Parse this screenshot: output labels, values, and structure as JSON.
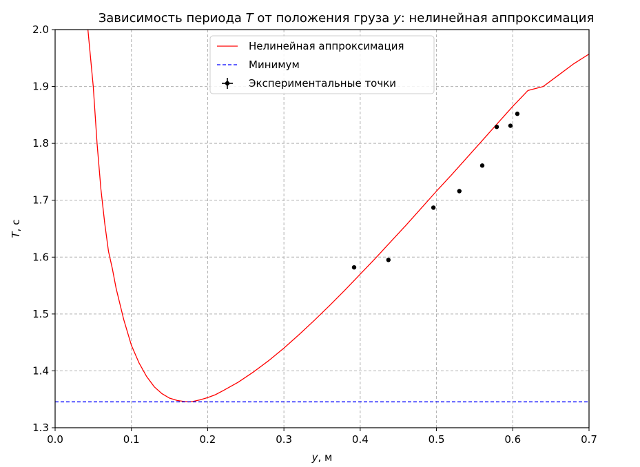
{
  "chart_data": {
    "type": "line",
    "title_parts": [
      {
        "text": "Зависимость периода ",
        "italic": false
      },
      {
        "text": "T",
        "italic": true
      },
      {
        "text": " от положения груза ",
        "italic": false
      },
      {
        "text": "y",
        "italic": true
      },
      {
        "text": ": нелинейная аппроксимация",
        "italic": false
      }
    ],
    "xlabel_parts": [
      {
        "text": "y",
        "italic": true
      },
      {
        "text": ", м",
        "italic": false
      }
    ],
    "ylabel_parts": [
      {
        "text": "T",
        "italic": true
      },
      {
        "text": ", с",
        "italic": false
      }
    ],
    "xlim": [
      0.0,
      0.7
    ],
    "ylim": [
      1.3,
      2.0
    ],
    "xticks": [
      0.0,
      0.1,
      0.2,
      0.3,
      0.4,
      0.5,
      0.6,
      0.7
    ],
    "xtick_labels": [
      "0.0",
      "0.1",
      "0.2",
      "0.3",
      "0.4",
      "0.5",
      "0.6",
      "0.7"
    ],
    "yticks": [
      1.3,
      1.4,
      1.5,
      1.6,
      1.7,
      1.8,
      1.9,
      2.0
    ],
    "ytick_labels": [
      "1.3",
      "1.4",
      "1.5",
      "1.6",
      "1.7",
      "1.8",
      "1.9",
      "2.0"
    ],
    "grid": true,
    "legend_position": "top-center",
    "series": [
      {
        "name": "Нелинейная аппроксимация",
        "kind": "line",
        "color": "#ff0000",
        "x": [
          0.043,
          0.05,
          0.055,
          0.06,
          0.065,
          0.07,
          0.075,
          0.08,
          0.09,
          0.1,
          0.11,
          0.12,
          0.13,
          0.14,
          0.15,
          0.16,
          0.17,
          0.175,
          0.18,
          0.19,
          0.2,
          0.21,
          0.22,
          0.24,
          0.26,
          0.28,
          0.3,
          0.32,
          0.34,
          0.36,
          0.38,
          0.4,
          0.42,
          0.44,
          0.46,
          0.48,
          0.5,
          0.52,
          0.54,
          0.56,
          0.58,
          0.6,
          0.62,
          0.64,
          0.66,
          0.68,
          0.7
        ],
        "y": [
          2.0,
          1.9,
          1.8,
          1.72,
          1.66,
          1.61,
          1.58,
          1.545,
          1.49,
          1.445,
          1.414,
          1.39,
          1.372,
          1.36,
          1.352,
          1.348,
          1.346,
          1.3455,
          1.346,
          1.349,
          1.353,
          1.358,
          1.365,
          1.38,
          1.398,
          1.418,
          1.44,
          1.464,
          1.489,
          1.515,
          1.542,
          1.57,
          1.598,
          1.627,
          1.656,
          1.686,
          1.716,
          1.745,
          1.775,
          1.805,
          1.835,
          1.865,
          1.893,
          1.9,
          1.92,
          1.94,
          1.957
        ]
      },
      {
        "name": "Минимум",
        "kind": "hline",
        "color": "#0000ff",
        "y": 1.3455
      },
      {
        "name": "Экспериментальные точки",
        "kind": "scatter",
        "color": "#000000",
        "x": [
          0.392,
          0.437,
          0.496,
          0.53,
          0.56,
          0.579,
          0.597,
          0.606
        ],
        "y": [
          1.582,
          1.595,
          1.687,
          1.716,
          1.761,
          1.829,
          1.831,
          1.852
        ]
      }
    ]
  }
}
